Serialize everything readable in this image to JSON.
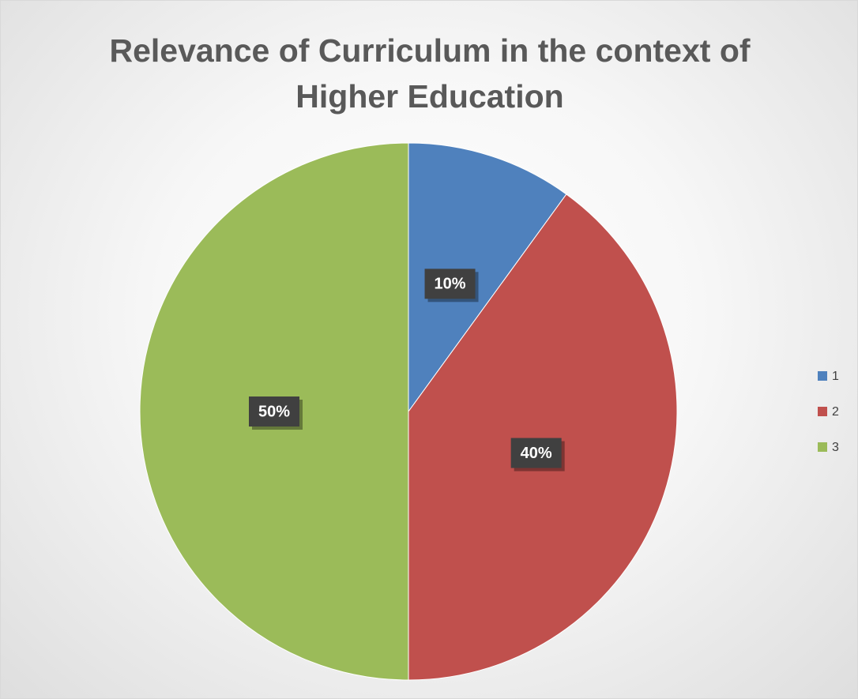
{
  "chart_data": {
    "type": "pie",
    "title": "Relevance of Curriculum in the context of Higher Education",
    "categories": [
      "1",
      "2",
      "3"
    ],
    "values": [
      10,
      40,
      50
    ],
    "value_labels": [
      "10%",
      "40%",
      "50%"
    ],
    "colors": [
      "#4f81bd",
      "#c0504d",
      "#9bbb59"
    ],
    "legend": "right"
  }
}
